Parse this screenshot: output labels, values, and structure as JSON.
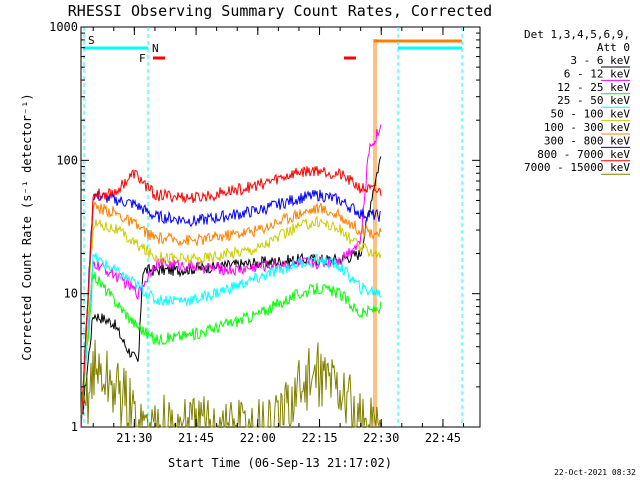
{
  "chart_data": {
    "type": "line",
    "title": "RHESSI Observing Summary Count Rates, Corrected",
    "xlabel": "Start Time (06-Sep-13 21:17:02)",
    "ylabel": "Corrected Count Rate (s⁻¹ detector⁻¹)",
    "y_scale": "log",
    "ylim": [
      1,
      1000
    ],
    "xlim": [
      "21:17:02",
      "22:54:00"
    ],
    "x_ticks": [
      "21:30",
      "21:45",
      "22:00",
      "22:15",
      "22:30",
      "22:45"
    ],
    "y_ticks": [
      "1",
      "10",
      "100",
      "1000"
    ],
    "grid": false,
    "legend_header": [
      "Det 1,3,4,5,6,9,",
      "Att 0"
    ],
    "legend_position": "right",
    "series": [
      {
        "name": "3 - 6 keV",
        "color": "#000000",
        "x": [
          "21:17:02",
          "21:20",
          "21:25",
          "21:28",
          "21:31",
          "21:32",
          "21:40",
          "21:50",
          "22:00",
          "22:10",
          "22:20",
          "22:25",
          "22:28",
          "22:30"
        ],
        "values": [
          1,
          7,
          6,
          4,
          3,
          15,
          15,
          16,
          17,
          18,
          18,
          20,
          60,
          110
        ]
      },
      {
        "name": "6 - 12 keV",
        "color": "#ff00ff",
        "x": [
          "21:17:02",
          "21:20",
          "21:25",
          "21:28",
          "21:31",
          "21:35",
          "21:45",
          "21:55",
          "22:00",
          "22:10",
          "22:15",
          "22:20",
          "22:25",
          "22:27",
          "22:30"
        ],
        "values": [
          1,
          17,
          14,
          12,
          10,
          17,
          16,
          15,
          16,
          17,
          17,
          18,
          25,
          120,
          180
        ]
      },
      {
        "name": "12 - 25 keV",
        "color": "#00ff00",
        "x": [
          "21:17:02",
          "21:20",
          "21:25",
          "21:30",
          "21:35",
          "21:45",
          "22:00",
          "22:10",
          "22:15",
          "22:20",
          "22:25",
          "22:30"
        ],
        "values": [
          1,
          14,
          9,
          6,
          4.5,
          5,
          7,
          10,
          11,
          10,
          7,
          8
        ]
      },
      {
        "name": "25 - 50 keV",
        "color": "#00ffff",
        "x": [
          "21:17:02",
          "21:20",
          "21:25",
          "21:30",
          "21:35",
          "21:45",
          "22:00",
          "22:10",
          "22:15",
          "22:20",
          "22:25",
          "22:30"
        ],
        "values": [
          1,
          19,
          15,
          12,
          9,
          9,
          13,
          17,
          18,
          16,
          11,
          10
        ]
      },
      {
        "name": "50 - 100 keV",
        "color": "#cccc00",
        "x": [
          "21:17:02",
          "21:20",
          "21:25",
          "21:30",
          "21:35",
          "21:45",
          "22:00",
          "22:10",
          "22:15",
          "22:20",
          "22:25",
          "22:30"
        ],
        "values": [
          1,
          34,
          31,
          24,
          19,
          18,
          22,
          32,
          35,
          30,
          22,
          20
        ]
      },
      {
        "name": "100 - 300 keV",
        "color": "#ff8000",
        "x": [
          "21:17:02",
          "21:20",
          "21:25",
          "21:30",
          "21:35",
          "21:45",
          "22:00",
          "22:10",
          "22:15",
          "22:20",
          "22:25",
          "22:30"
        ],
        "values": [
          1,
          45,
          41,
          33,
          26,
          25,
          30,
          40,
          44,
          38,
          30,
          28
        ]
      },
      {
        "name": "300 - 800 keV",
        "color": "#0000ff",
        "x": [
          "21:17:02",
          "21:20",
          "21:25",
          "21:30",
          "21:35",
          "21:45",
          "22:00",
          "22:10",
          "22:15",
          "22:20",
          "22:25",
          "22:30"
        ],
        "values": [
          1,
          55,
          51,
          47,
          38,
          35,
          42,
          52,
          55,
          50,
          40,
          38
        ]
      },
      {
        "name": "800 - 7000 keV",
        "color": "#ff0000",
        "x": [
          "21:17:02",
          "21:20",
          "21:25",
          "21:30",
          "21:35",
          "21:45",
          "22:00",
          "22:10",
          "22:15",
          "22:20",
          "22:25",
          "22:30"
        ],
        "values": [
          1,
          55,
          57,
          80,
          55,
          52,
          65,
          82,
          85,
          78,
          62,
          58
        ]
      },
      {
        "name": "7000 - 15000 keV",
        "color": "#808000",
        "x": [
          "21:17:02",
          "21:20",
          "21:25",
          "21:28",
          "21:31",
          "21:35",
          "22:05",
          "22:10",
          "22:15",
          "22:20",
          "22:22",
          "22:25",
          "22:30"
        ],
        "values": [
          1,
          2.8,
          2,
          1.6,
          1,
          1,
          1,
          2,
          2.5,
          2,
          1.5,
          1,
          1
        ]
      }
    ],
    "indicators": {
      "S": {
        "label": "S",
        "color": "#ff8000"
      },
      "N": {
        "label": "N",
        "color": "#00ffff"
      },
      "F": {
        "label": "F",
        "color": "#ff0000"
      }
    }
  },
  "timestamp": "22-Oct-2021 08:32"
}
